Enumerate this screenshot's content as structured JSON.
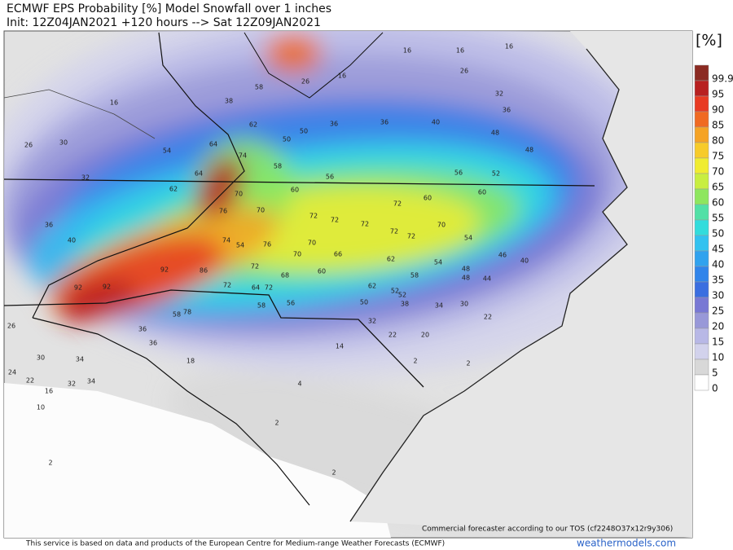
{
  "header": {
    "title": "ECMWF EPS Probability [%] Model Snowfall over 1 inches",
    "init": "Init: 12Z04JAN2021 +120 hours --> Sat 12Z09JAN2021"
  },
  "legend": {
    "unit": "[%]",
    "levels": [
      {
        "value": 99.9,
        "color": "#8b2a22"
      },
      {
        "value": 95,
        "color": "#b82020"
      },
      {
        "value": 90,
        "color": "#e83a22"
      },
      {
        "value": 85,
        "color": "#f06a22"
      },
      {
        "value": 80,
        "color": "#f5a325"
      },
      {
        "value": 75,
        "color": "#f7cb2a"
      },
      {
        "value": 70,
        "color": "#f0ec30"
      },
      {
        "value": 65,
        "color": "#c8ee40"
      },
      {
        "value": 60,
        "color": "#8ee65e"
      },
      {
        "value": 55,
        "color": "#52e0a6"
      },
      {
        "value": 50,
        "color": "#32dcdc"
      },
      {
        "value": 45,
        "color": "#32c2f0"
      },
      {
        "value": 40,
        "color": "#30a2ee"
      },
      {
        "value": 35,
        "color": "#3084ea"
      },
      {
        "value": 30,
        "color": "#3a6ee0"
      },
      {
        "value": 25,
        "color": "#7878d4"
      },
      {
        "value": 20,
        "color": "#9898d8"
      },
      {
        "value": 15,
        "color": "#b8b8e6"
      },
      {
        "value": 10,
        "color": "#d2d2ec"
      },
      {
        "value": 5,
        "color": "#d8d8d8"
      },
      {
        "value": 0,
        "color": "#ffffff"
      }
    ]
  },
  "map": {
    "labels": [
      16,
      30,
      26,
      32,
      54,
      64,
      74,
      62,
      38,
      58,
      26,
      16,
      16,
      16,
      26,
      16,
      62,
      64,
      70,
      70,
      76,
      60,
      56,
      58,
      50,
      50,
      36,
      36,
      40,
      48,
      32,
      36,
      48,
      56,
      52,
      60,
      60,
      72,
      72,
      72,
      72,
      72,
      72,
      70,
      54,
      46,
      40,
      36,
      40,
      74,
      54,
      76,
      70,
      70,
      66,
      62,
      54,
      48,
      48,
      44,
      92,
      86,
      72,
      68,
      60,
      58,
      62,
      52,
      52,
      92,
      92,
      72,
      64,
      72,
      58,
      56,
      50,
      38,
      34,
      30,
      58,
      78,
      36,
      36,
      32,
      22,
      22,
      20,
      14,
      34,
      30,
      18,
      22,
      32,
      34,
      2,
      2,
      4,
      2,
      2,
      10,
      16,
      24,
      26,
      2
    ]
  },
  "footer": {
    "tos": "Commercial forecaster according to our TOS (cf2248O37x12r9y306)",
    "notice": "This service is based on data and products of the European Centre for Medium-range Weather Forecasts (ECMWF)",
    "brand": "weathermodels.com"
  }
}
